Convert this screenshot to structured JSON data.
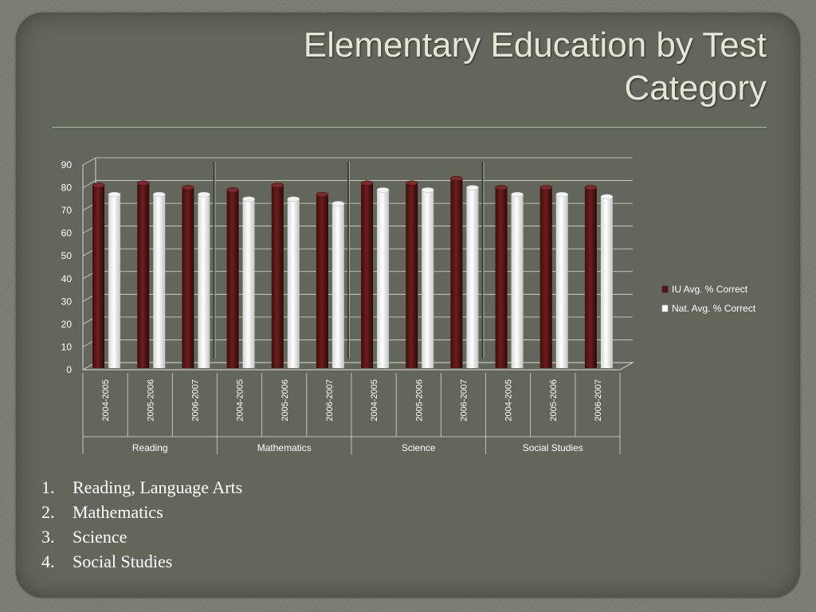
{
  "slide": {
    "title_line1": "Elementary Education by Test",
    "title_line2": "Category"
  },
  "list": [
    {
      "number": "1.",
      "text": "Reading, Language Arts"
    },
    {
      "number": "2.",
      "text": "Mathematics"
    },
    {
      "number": "3.",
      "text": "Science"
    },
    {
      "number": "4.",
      "text": "Social Studies"
    }
  ],
  "chart_data": {
    "type": "bar",
    "groups": [
      "Reading",
      "Mathematics",
      "Science",
      "Social Studies"
    ],
    "categories": [
      "2004-2005",
      "2005-2006",
      "2006-2007",
      "2004-2005",
      "2005-2006",
      "2006-2007",
      "2004-2005",
      "2005-2006",
      "2006-2007",
      "2004-2005",
      "2005-2006",
      "2006-2007"
    ],
    "series": [
      {
        "name": "IU Avg. % Correct",
        "color": "#5a1616",
        "values": [
          81,
          82,
          80,
          79,
          81,
          77,
          82,
          82,
          84,
          80,
          80,
          80
        ]
      },
      {
        "name": "Nat. Avg. % Correct",
        "color": "#ffffff",
        "values": [
          77,
          77,
          77,
          75,
          75,
          73,
          79,
          79,
          80,
          77,
          77,
          76
        ]
      }
    ],
    "ylim": [
      0,
      90
    ],
    "yticks": [
      "0",
      "10",
      "20",
      "30",
      "40",
      "50",
      "60",
      "70",
      "80",
      "90"
    ],
    "grid": true,
    "legend_position": "right"
  }
}
